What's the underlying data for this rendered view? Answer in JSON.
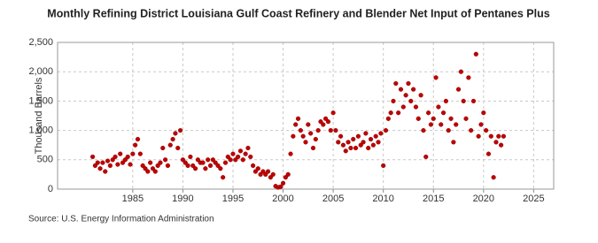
{
  "chart_data": {
    "type": "scatter",
    "title": "Monthly Refining District Louisiana Gulf Coast Refinery and Blender Net Input of Pentanes Plus",
    "y_label": "Thousand Barrels",
    "source": "Source: U.S. Energy Information Administration",
    "color": "#c00000",
    "grid": true,
    "xlim": [
      1977.5,
      2027
    ],
    "ylim": [
      0,
      2500
    ],
    "xticks": [
      1985,
      1990,
      1995,
      2000,
      2005,
      2010,
      2015,
      2020,
      2025
    ],
    "yticks": [
      0,
      500,
      {
        "value": 1000,
        "label": "1,000"
      },
      {
        "value": 1500,
        "label": "1,500"
      },
      {
        "value": 2000,
        "label": "2,000"
      },
      {
        "value": 2500,
        "label": "2,500"
      }
    ],
    "x": [
      1981,
      1981.25,
      1981.5,
      1981.75,
      1982,
      1982.25,
      1982.5,
      1982.75,
      1983,
      1983.25,
      1983.5,
      1983.75,
      1984,
      1984.25,
      1984.5,
      1984.75,
      1985,
      1985.25,
      1985.5,
      1985.75,
      1986,
      1986.25,
      1986.5,
      1986.75,
      1987,
      1987.25,
      1987.5,
      1987.75,
      1988,
      1988.25,
      1988.5,
      1988.75,
      1989,
      1989.25,
      1989.5,
      1989.75,
      1990,
      1990.25,
      1990.5,
      1990.75,
      1991,
      1991.25,
      1991.5,
      1991.75,
      1992,
      1992.25,
      1992.5,
      1992.75,
      1993,
      1993.25,
      1993.5,
      1993.75,
      1994,
      1994.25,
      1994.5,
      1994.75,
      1995,
      1995.25,
      1995.5,
      1995.75,
      1996,
      1996.25,
      1996.5,
      1996.75,
      1997,
      1997.25,
      1997.5,
      1997.75,
      1998,
      1998.25,
      1998.5,
      1998.75,
      1999,
      1999.25,
      1999.5,
      1999.75,
      2000,
      2000.25,
      2000.5,
      2000.75,
      2001,
      2001.25,
      2001.5,
      2001.75,
      2002,
      2002.25,
      2002.5,
      2002.75,
      2003,
      2003.25,
      2003.5,
      2003.75,
      2004,
      2004.25,
      2004.5,
      2004.75,
      2005,
      2005.25,
      2005.5,
      2005.75,
      2006,
      2006.25,
      2006.5,
      2006.75,
      2007,
      2007.25,
      2007.5,
      2007.75,
      2008,
      2008.25,
      2008.5,
      2008.75,
      2009,
      2009.25,
      2009.5,
      2009.75,
      2010,
      2010.25,
      2010.5,
      2010.75,
      2011,
      2011.25,
      2011.5,
      2011.75,
      2012,
      2012.25,
      2012.5,
      2012.75,
      2013,
      2013.25,
      2013.5,
      2013.75,
      2014,
      2014.25,
      2014.5,
      2014.75,
      2015,
      2015.25,
      2015.5,
      2015.75,
      2016,
      2016.25,
      2016.5,
      2016.75,
      2017,
      2017.25,
      2017.5,
      2017.75,
      2018,
      2018.25,
      2018.5,
      2018.75,
      2019,
      2019.25,
      2019.5,
      2019.75,
      2020,
      2020.25,
      2020.5,
      2020.75,
      2021,
      2021.25,
      2021.5,
      2021.75,
      2022
    ],
    "values": [
      550,
      400,
      450,
      350,
      450,
      300,
      480,
      400,
      500,
      550,
      420,
      600,
      450,
      500,
      550,
      420,
      600,
      750,
      850,
      600,
      400,
      350,
      300,
      450,
      350,
      300,
      400,
      450,
      700,
      500,
      400,
      750,
      850,
      950,
      700,
      1000,
      500,
      450,
      400,
      550,
      400,
      350,
      500,
      450,
      450,
      350,
      500,
      400,
      500,
      450,
      400,
      350,
      200,
      450,
      550,
      500,
      600,
      500,
      550,
      650,
      500,
      600,
      700,
      550,
      400,
      300,
      350,
      250,
      300,
      250,
      300,
      200,
      250,
      50,
      30,
      40,
      100,
      200,
      250,
      600,
      900,
      1100,
      1200,
      1000,
      900,
      800,
      1100,
      950,
      700,
      850,
      1000,
      1150,
      1100,
      1200,
      1150,
      1000,
      1300,
      1000,
      800,
      900,
      750,
      650,
      800,
      700,
      850,
      700,
      900,
      750,
      800,
      950,
      700,
      850,
      750,
      900,
      800,
      950,
      400,
      1000,
      1200,
      1300,
      1500,
      1800,
      1300,
      1700,
      1400,
      1600,
      1800,
      1500,
      1700,
      1400,
      1200,
      1600,
      1000,
      550,
      1300,
      1100,
      1200,
      1900,
      1400,
      1100,
      1300,
      1500,
      1000,
      1200,
      800,
      1100,
      1700,
      2000,
      1500,
      1200,
      1900,
      1000,
      1500,
      2300,
      900,
      1100,
      1300,
      1000,
      600,
      900,
      200,
      800,
      900,
      750,
      900
    ]
  }
}
